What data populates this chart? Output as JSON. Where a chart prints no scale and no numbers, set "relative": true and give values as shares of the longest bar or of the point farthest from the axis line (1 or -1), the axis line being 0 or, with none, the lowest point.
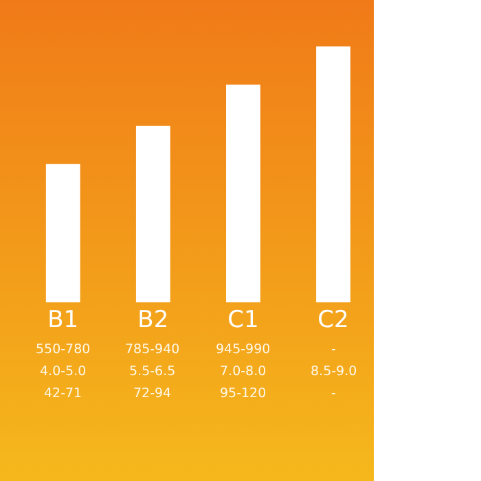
{
  "chart_data": {
    "type": "bar",
    "relative": true,
    "categories": [
      "B1",
      "B2",
      "C1",
      "C2"
    ],
    "values": [
      0.54,
      0.69,
      0.85,
      1
    ],
    "color": "#ffffff",
    "grid": false,
    "legend": false,
    "annotations": [
      "550-780",
      "785-940",
      "945-990",
      "-",
      "4.0-5.0",
      "5.5-6.5",
      "7.0-8.0",
      "8.5-9.0",
      "42-71",
      "72-94",
      "95-120",
      "-"
    ]
  }
}
